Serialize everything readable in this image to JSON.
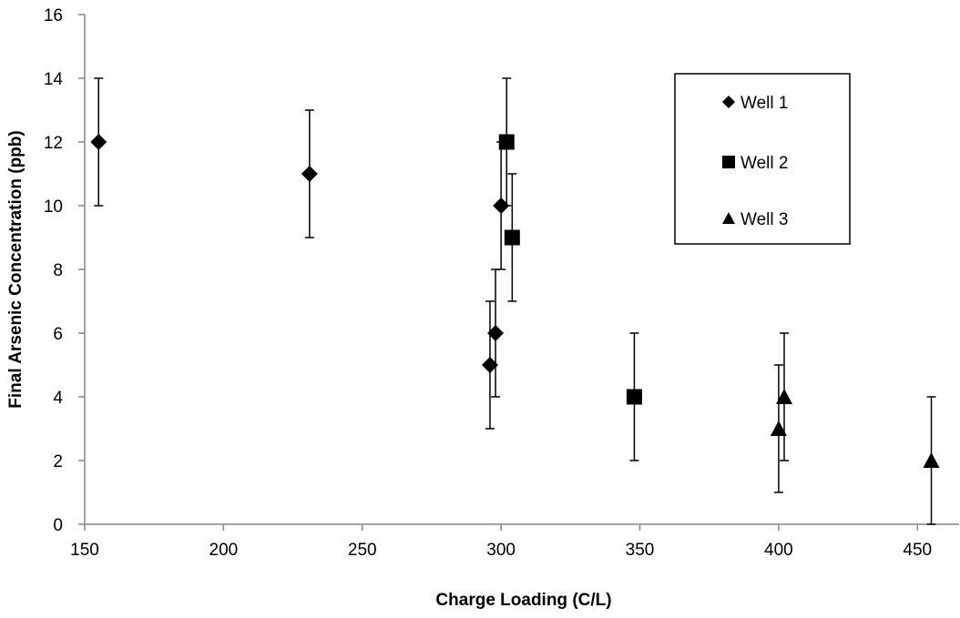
{
  "chart_data": {
    "type": "scatter",
    "title": "",
    "xlabel": "Charge Loading (C/L)",
    "ylabel": "Final Arsenic Concentration (ppb)",
    "xlim": [
      150,
      465
    ],
    "ylim": [
      0,
      16
    ],
    "xticks": [
      150,
      200,
      250,
      300,
      350,
      400,
      450
    ],
    "yticks": [
      0,
      2,
      4,
      6,
      8,
      10,
      12,
      14,
      16
    ],
    "grid": false,
    "legend_position": "top-right",
    "series": [
      {
        "name": "Well 1",
        "marker": "diamond",
        "color": "#000000",
        "points": [
          {
            "x": 155,
            "y": 12,
            "err": 2
          },
          {
            "x": 231,
            "y": 11,
            "err": 2
          },
          {
            "x": 300,
            "y": 10,
            "err": 2
          },
          {
            "x": 298,
            "y": 6,
            "err": 2
          },
          {
            "x": 296,
            "y": 5,
            "err": 2
          }
        ]
      },
      {
        "name": "Well 2",
        "marker": "square",
        "color": "#000000",
        "points": [
          {
            "x": 302,
            "y": 12,
            "err": 2
          },
          {
            "x": 304,
            "y": 9,
            "err": 2
          },
          {
            "x": 348,
            "y": 4,
            "err": 2
          }
        ]
      },
      {
        "name": "Well 3",
        "marker": "triangle",
        "color": "#000000",
        "points": [
          {
            "x": 400,
            "y": 3,
            "err": 2
          },
          {
            "x": 402,
            "y": 4,
            "err": 2
          },
          {
            "x": 455,
            "y": 2,
            "err": 2
          }
        ]
      }
    ]
  }
}
